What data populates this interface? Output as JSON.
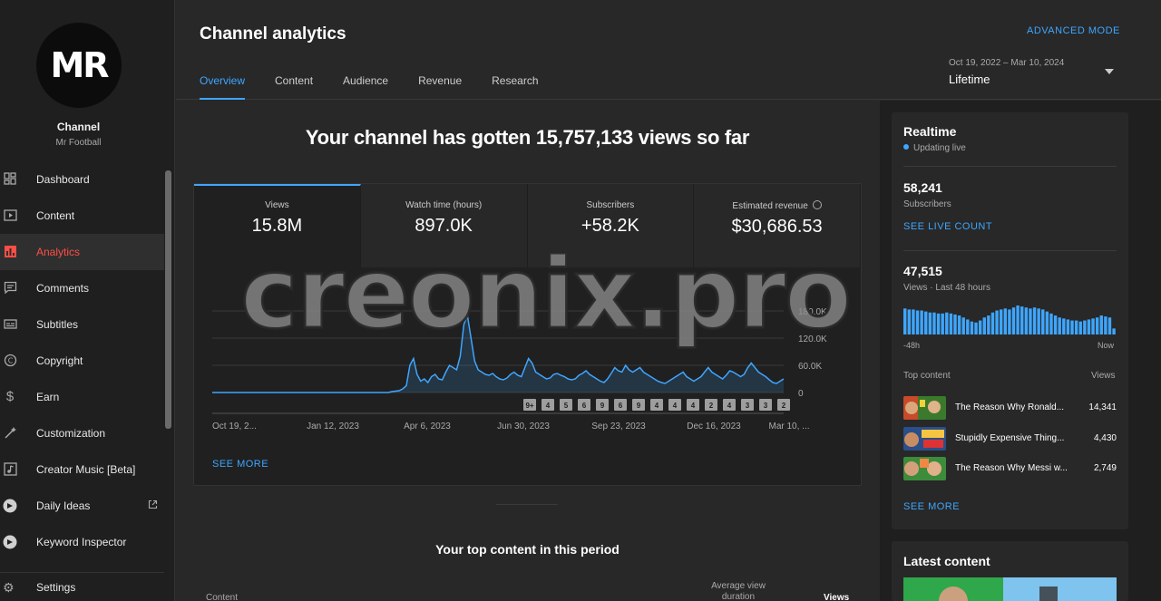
{
  "channel": {
    "title": "Channel",
    "name": "Mr Football",
    "logo_text": "MR"
  },
  "sidebar": {
    "items": [
      {
        "label": "Dashboard",
        "icon": "dashboard-icon"
      },
      {
        "label": "Content",
        "icon": "content-icon"
      },
      {
        "label": "Analytics",
        "icon": "analytics-icon",
        "active": true
      },
      {
        "label": "Comments",
        "icon": "comments-icon"
      },
      {
        "label": "Subtitles",
        "icon": "subtitles-icon"
      },
      {
        "label": "Copyright",
        "icon": "copyright-icon"
      },
      {
        "label": "Earn",
        "icon": "earn-icon"
      },
      {
        "label": "Customization",
        "icon": "customization-icon"
      },
      {
        "label": "Creator Music [Beta]",
        "icon": "music-icon"
      },
      {
        "label": "Daily Ideas",
        "icon": "daily-ideas-icon"
      },
      {
        "label": "Keyword Inspector",
        "icon": "keyword-inspector-icon"
      }
    ],
    "settings_label": "Settings"
  },
  "header": {
    "title": "Channel analytics",
    "advanced_mode": "ADVANCED MODE",
    "tabs": [
      "Overview",
      "Content",
      "Audience",
      "Revenue",
      "Research"
    ],
    "active_tab": "Overview",
    "date_range": "Oct 19, 2022 – Mar 10, 2024",
    "date_label": "Lifetime"
  },
  "main": {
    "headline": "Your channel has gotten 15,757,133 views so far",
    "metrics": [
      {
        "label": "Views",
        "value": "15.8M"
      },
      {
        "label": "Watch time (hours)",
        "value": "897.0K"
      },
      {
        "label": "Subscribers",
        "value": "+58.2K"
      },
      {
        "label": "Estimated revenue",
        "value": "$30,686.53"
      }
    ],
    "see_more": "SEE MORE",
    "top_content_title": "Your top content in this period",
    "table_headers": {
      "content": "Content",
      "avg_view_duration": "Average view duration",
      "views": "Views"
    }
  },
  "chart_data": {
    "type": "area",
    "y_ticks": [
      "180.0K",
      "120.0K",
      "60.0K",
      "0"
    ],
    "ylim": [
      0,
      180000
    ],
    "x_tick_labels": [
      "Oct 19, 2...",
      "Jan 12, 2023",
      "Apr 6, 2023",
      "Jun 30, 2023",
      "Sep 23, 2023",
      "Dec 16, 2023",
      "Mar 10, ..."
    ],
    "series": [
      {
        "values": [
          0,
          0,
          0,
          0,
          0,
          0,
          0,
          0,
          0,
          0,
          0,
          0,
          0,
          0,
          0,
          0,
          0,
          0,
          0,
          0,
          0,
          0,
          0,
          0,
          0,
          0,
          0,
          0,
          0,
          0,
          0,
          0,
          0,
          0,
          0,
          0,
          0,
          0,
          0,
          0,
          0,
          0,
          0,
          0,
          0,
          0,
          0,
          0,
          0,
          0,
          2000,
          3000,
          4000,
          8000,
          15000,
          60000,
          75000,
          40000,
          25000,
          30000,
          22000,
          35000,
          40000,
          30000,
          28000,
          45000,
          60000,
          55000,
          50000,
          80000,
          150000,
          170000,
          120000,
          70000,
          50000,
          45000,
          40000,
          38000,
          42000,
          35000,
          30000,
          28000,
          32000,
          40000,
          45000,
          38000,
          35000,
          55000,
          75000,
          65000,
          45000,
          40000,
          35000,
          30000,
          32000,
          40000,
          42000,
          38000,
          35000,
          30000,
          28000,
          30000,
          38000,
          42000,
          48000,
          40000,
          35000,
          30000,
          25000,
          22000,
          30000,
          42000,
          55000,
          48000,
          45000,
          60000,
          50000,
          45000,
          50000,
          55000,
          45000,
          40000,
          35000,
          30000,
          25000,
          22000,
          20000,
          25000,
          30000,
          35000,
          40000,
          45000,
          35000,
          30000,
          25000,
          30000,
          35000,
          45000,
          55000,
          45000,
          40000,
          35000,
          30000,
          38000,
          48000,
          45000,
          40000,
          35000,
          40000,
          55000,
          65000,
          55000,
          45000,
          40000,
          35000,
          28000,
          22000,
          20000,
          25000,
          30000
        ]
      }
    ],
    "video_markers": [
      "9+",
      "4",
      "5",
      "6",
      "9",
      "6",
      "9",
      "4",
      "4",
      "4",
      "2",
      "4",
      "3",
      "3",
      "2"
    ],
    "grid": true
  },
  "realtime": {
    "title": "Realtime",
    "status": "Updating live",
    "subscribers_value": "58,241",
    "subscribers_label": "Subscribers",
    "see_live_count": "SEE LIVE COUNT",
    "views_value": "47,515",
    "views_label": "Views · Last 48 hours",
    "bars_left": "-48h",
    "bars_right": "Now",
    "bars": [
      26,
      25,
      25,
      24,
      24,
      23,
      22,
      22,
      21,
      21,
      22,
      21,
      20,
      19,
      17,
      15,
      13,
      12,
      14,
      17,
      19,
      22,
      24,
      25,
      26,
      25,
      27,
      29,
      28,
      27,
      26,
      27,
      26,
      25,
      23,
      21,
      19,
      17,
      16,
      15,
      14,
      14,
      13,
      14,
      15,
      16,
      17,
      19,
      18,
      17,
      6
    ],
    "top_content_label": "Top content",
    "views_col_label": "Views",
    "top_content": [
      {
        "title": "The Reason Why Ronald...",
        "views": "14,341"
      },
      {
        "title": "Stupidly Expensive Thing...",
        "views": "4,430"
      },
      {
        "title": "The Reason Why Messi w...",
        "views": "2,749"
      }
    ],
    "see_more": "SEE MORE"
  },
  "latest": {
    "title": "Latest content"
  },
  "watermark": "creonix.pro",
  "colors": {
    "accent": "#3ea6ff",
    "active_nav": "#ff4e45"
  }
}
